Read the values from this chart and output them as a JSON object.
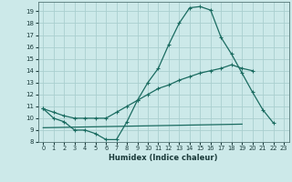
{
  "xlabel": "Humidex (Indice chaleur)",
  "bg_color": "#cce9e9",
  "grid_color": "#aacfcf",
  "line_color": "#1a6b60",
  "xlim": [
    -0.5,
    23.5
  ],
  "ylim": [
    8,
    19.8
  ],
  "yticks": [
    8,
    9,
    10,
    11,
    12,
    13,
    14,
    15,
    16,
    17,
    18,
    19
  ],
  "xticks": [
    0,
    1,
    2,
    3,
    4,
    5,
    6,
    7,
    8,
    9,
    10,
    11,
    12,
    13,
    14,
    15,
    16,
    17,
    18,
    19,
    20,
    21,
    22,
    23
  ],
  "series1_x": [
    0,
    1,
    2,
    3,
    4,
    5,
    6,
    7,
    8,
    9,
    10,
    11,
    12,
    13,
    14,
    15,
    16,
    17,
    18,
    19,
    20,
    21,
    22
  ],
  "series1_y": [
    10.8,
    10.0,
    9.7,
    9.0,
    9.0,
    8.7,
    8.2,
    8.2,
    9.7,
    11.5,
    13.0,
    14.2,
    16.2,
    18.0,
    19.3,
    19.4,
    19.1,
    16.8,
    15.4,
    13.8,
    12.2,
    10.7,
    9.6
  ],
  "series2_x": [
    0,
    1,
    2,
    3,
    4,
    5,
    6,
    7,
    8,
    9,
    10,
    11,
    12,
    13,
    14,
    15,
    16,
    17,
    18,
    19,
    20
  ],
  "series2_y": [
    10.8,
    10.5,
    10.2,
    10.0,
    10.0,
    10.0,
    10.0,
    10.5,
    11.0,
    11.5,
    12.0,
    12.5,
    12.8,
    13.2,
    13.5,
    13.8,
    14.0,
    14.2,
    14.5,
    14.2,
    14.0
  ],
  "series3_x": [
    0,
    19
  ],
  "series3_y": [
    9.2,
    9.5
  ]
}
